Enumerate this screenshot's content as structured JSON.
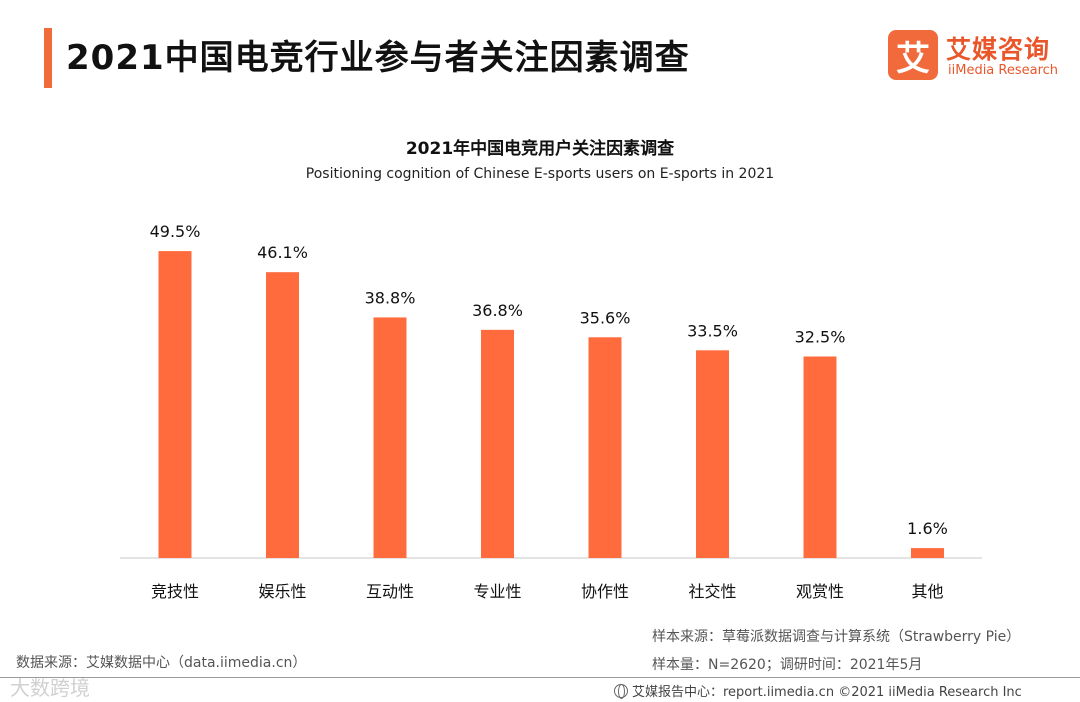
{
  "header": {
    "title": "2021中国电竞行业参与者关注因素调查"
  },
  "logo": {
    "badge": "艾",
    "name_cn": "艾媒咨询",
    "name_en": "iiMedia Research"
  },
  "colors": {
    "accent": "#f06a3c",
    "bar": "#ff6b3d",
    "axis": "#c8c8c8"
  },
  "chart_data": {
    "type": "bar",
    "title": "2021年中国电竞用户关注因素调查",
    "subtitle": "Positioning cognition of Chinese E-sports users on E-sports in 2021",
    "categories": [
      "竞技性",
      "娱乐性",
      "互动性",
      "专业性",
      "协作性",
      "社交性",
      "观赏性",
      "其他"
    ],
    "values": [
      49.5,
      46.1,
      38.8,
      36.8,
      35.6,
      33.5,
      32.5,
      1.6
    ],
    "value_labels": [
      "49.5%",
      "46.1%",
      "38.8%",
      "36.8%",
      "35.6%",
      "33.5%",
      "32.5%",
      "1.6%"
    ],
    "unit": "%",
    "ylim": [
      0,
      50
    ],
    "xlabel": "",
    "ylabel": "",
    "grid": false,
    "legend": "none"
  },
  "source": {
    "data_source": "数据来源：艾媒数据中心（data.iimedia.cn）",
    "sample_source": "样本来源：草莓派数据调查与计算系统（Strawberry Pie）",
    "sample_size": "样本量：N=2620；调研时间：2021年5月"
  },
  "watermark": "大数跨境",
  "footer": {
    "text": "艾媒报告中心：report.iimedia.cn ©2021  iiMedia Research  Inc"
  }
}
